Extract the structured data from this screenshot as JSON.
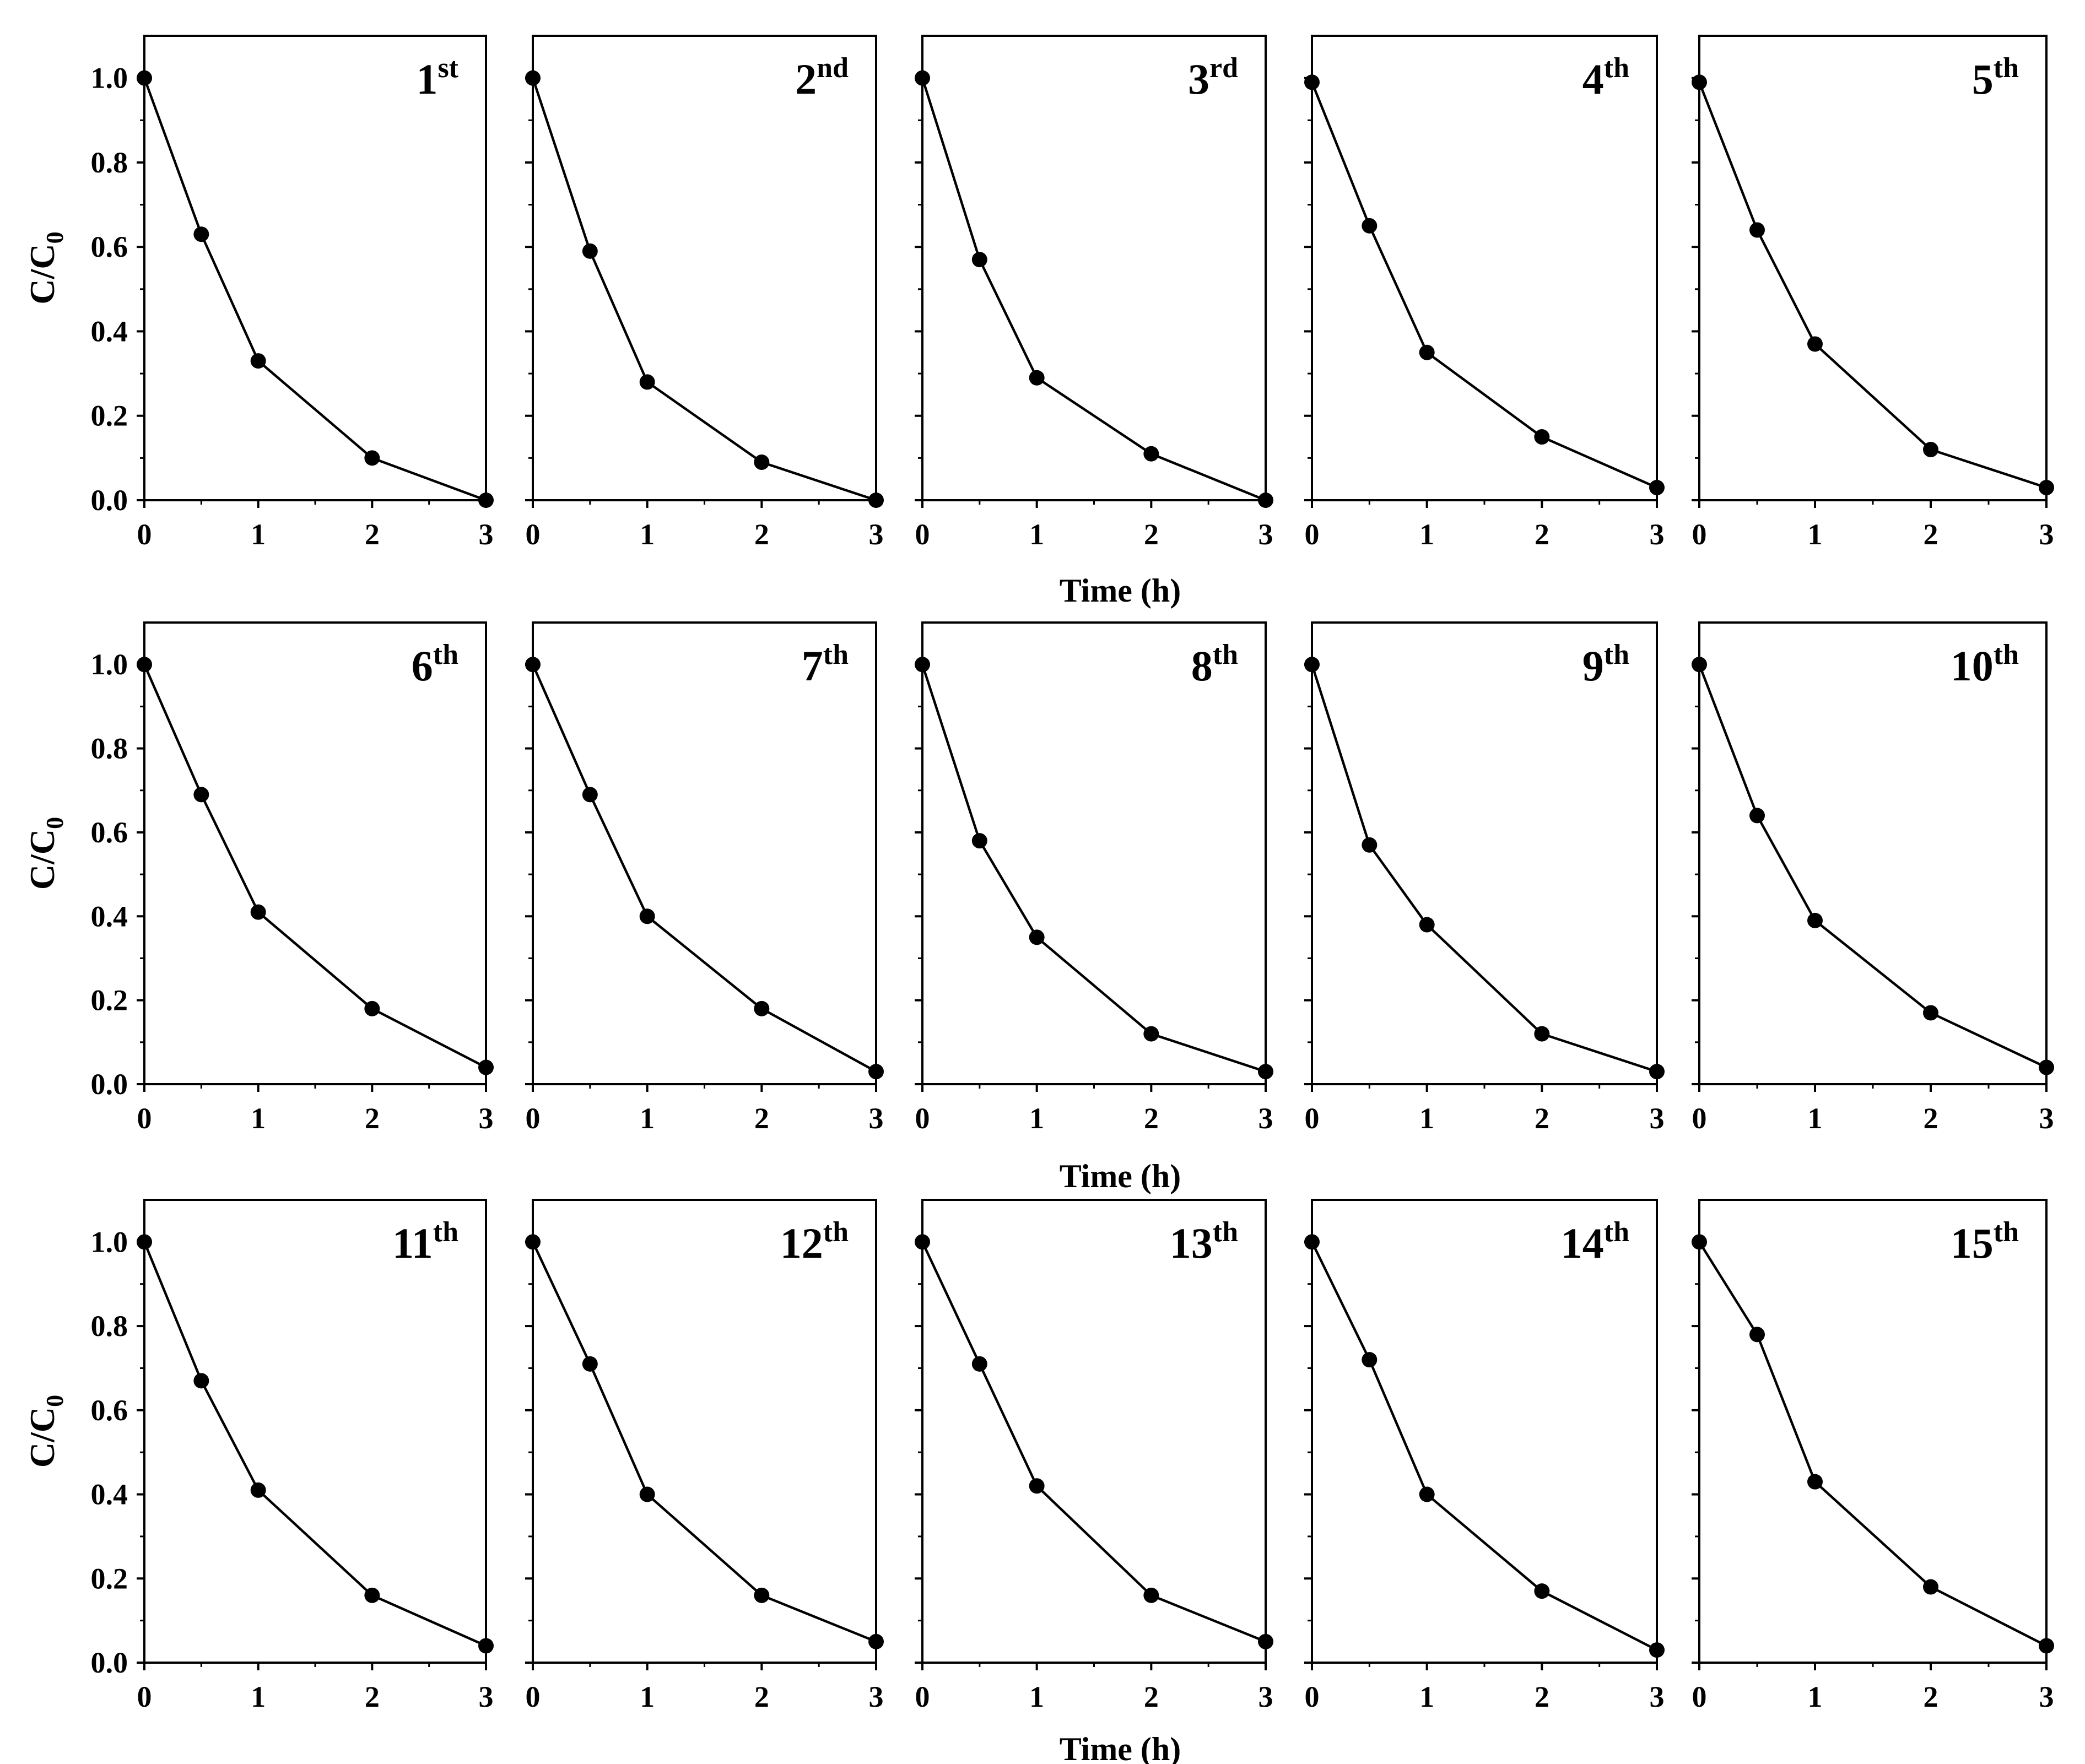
{
  "chart_data": {
    "type": "line",
    "layout": {
      "rows": 3,
      "cols": 5
    },
    "x": [
      0,
      0.5,
      1,
      2,
      3
    ],
    "xlim": [
      0,
      3
    ],
    "ylim": [
      0,
      1.1
    ],
    "xticks": [
      "0",
      "1",
      "2",
      "3"
    ],
    "yticks": [
      "0.0",
      "0.2",
      "0.4",
      "0.6",
      "0.8",
      "1.0"
    ],
    "xlabel": "Time (h)",
    "ylabel_main": "C/C",
    "ylabel_sub": "0",
    "grid": false,
    "legend": "none",
    "line_color": "#000000",
    "marker": "filled-circle",
    "panels": [
      {
        "label_num": "1",
        "label_sup": "st",
        "values": [
          1.0,
          0.63,
          0.33,
          0.1,
          0.0
        ]
      },
      {
        "label_num": "2",
        "label_sup": "nd",
        "values": [
          1.0,
          0.59,
          0.28,
          0.09,
          0.0
        ]
      },
      {
        "label_num": "3",
        "label_sup": "rd",
        "values": [
          1.0,
          0.57,
          0.29,
          0.11,
          0.0
        ]
      },
      {
        "label_num": "4",
        "label_sup": "th",
        "values": [
          0.99,
          0.65,
          0.35,
          0.15,
          0.03
        ]
      },
      {
        "label_num": "5",
        "label_sup": "th",
        "values": [
          0.99,
          0.64,
          0.37,
          0.12,
          0.03
        ]
      },
      {
        "label_num": "6",
        "label_sup": "th",
        "values": [
          1.0,
          0.69,
          0.41,
          0.18,
          0.04
        ]
      },
      {
        "label_num": "7",
        "label_sup": "th",
        "values": [
          1.0,
          0.69,
          0.4,
          0.18,
          0.03
        ]
      },
      {
        "label_num": "8",
        "label_sup": "th",
        "values": [
          1.0,
          0.58,
          0.35,
          0.12,
          0.03
        ]
      },
      {
        "label_num": "9",
        "label_sup": "th",
        "values": [
          1.0,
          0.57,
          0.38,
          0.12,
          0.03
        ]
      },
      {
        "label_num": "10",
        "label_sup": "th",
        "values": [
          1.0,
          0.64,
          0.39,
          0.17,
          0.04
        ]
      },
      {
        "label_num": "11",
        "label_sup": "th",
        "values": [
          1.0,
          0.67,
          0.41,
          0.16,
          0.04
        ]
      },
      {
        "label_num": "12",
        "label_sup": "th",
        "values": [
          1.0,
          0.71,
          0.4,
          0.16,
          0.05
        ]
      },
      {
        "label_num": "13",
        "label_sup": "th",
        "values": [
          1.0,
          0.71,
          0.42,
          0.16,
          0.05
        ]
      },
      {
        "label_num": "14",
        "label_sup": "th",
        "values": [
          1.0,
          0.72,
          0.4,
          0.17,
          0.03
        ]
      },
      {
        "label_num": "15",
        "label_sup": "th",
        "values": [
          1.0,
          0.78,
          0.43,
          0.18,
          0.04
        ]
      }
    ]
  }
}
